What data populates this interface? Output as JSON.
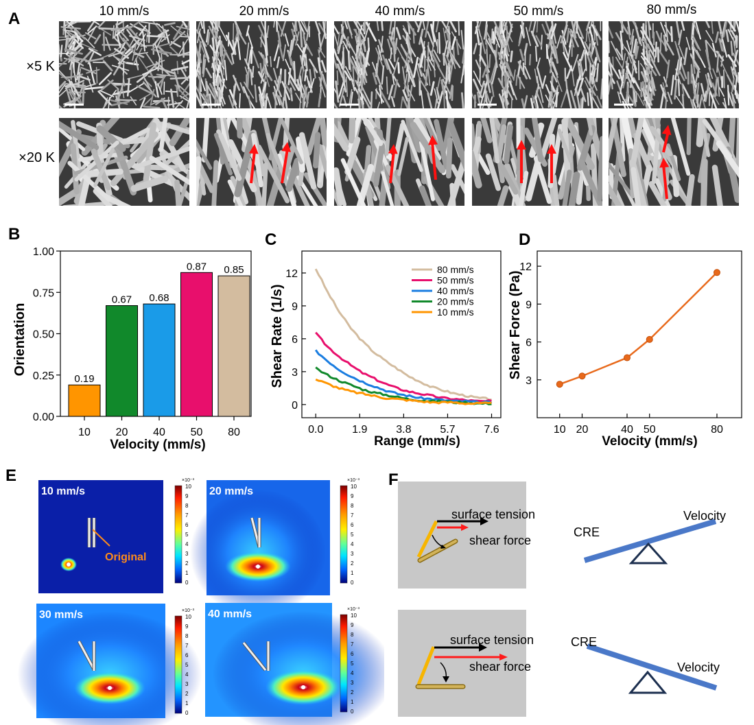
{
  "panels": {
    "A": "A",
    "B": "B",
    "C": "C",
    "D": "D",
    "E": "E",
    "F": "F"
  },
  "panel_a": {
    "velocities": [
      "10 mm/s",
      "20 mm/s",
      "40 mm/s",
      "50 mm/s",
      "80 mm/s"
    ],
    "magnifications": [
      "×5 K",
      "×20 K"
    ]
  },
  "chart_data": [
    {
      "id": "B",
      "type": "bar",
      "categories": [
        "10",
        "20",
        "40",
        "50",
        "80"
      ],
      "values": [
        0.19,
        0.67,
        0.68,
        0.87,
        0.85
      ],
      "value_labels": [
        "0.19",
        "0.67",
        "0.68",
        "0.87",
        "0.85"
      ],
      "colors": [
        "#ff9500",
        "#11892b",
        "#1a9be8",
        "#e80f6c",
        "#d3bc9f"
      ],
      "xlabel": "Velocity (mm/s)",
      "ylabel": "Orientation",
      "ylim": [
        0,
        1.0
      ],
      "yticks": [
        "0.00",
        "0.25",
        "0.50",
        "0.75",
        "1.00"
      ]
    },
    {
      "id": "C",
      "type": "line",
      "xlabel": "Range (mm/s)",
      "ylabel": "Shear Rate (1/s)",
      "xlim": [
        -0.6,
        8.0
      ],
      "ylim": [
        -1.2,
        14.0
      ],
      "xticks": [
        "0.0",
        "1.9",
        "3.8",
        "5.7",
        "7.6"
      ],
      "yticks": [
        "0",
        "3",
        "6",
        "9",
        "12"
      ],
      "legend_position": "top-right",
      "series": [
        {
          "name": "80 mm/s",
          "color": "#d3bc9f",
          "x": [
            0,
            0.5,
            1,
            1.5,
            2,
            2.5,
            3,
            3.5,
            4,
            4.5,
            5,
            5.5,
            6,
            6.5,
            7,
            7.6
          ],
          "y": [
            12.4,
            10.3,
            8.5,
            7.0,
            5.8,
            4.8,
            4.0,
            3.3,
            2.6,
            2.1,
            1.6,
            1.3,
            1.0,
            0.8,
            0.6,
            0.5
          ]
        },
        {
          "name": "50 mm/s",
          "color": "#e80f6c",
          "x": [
            0,
            0.5,
            1,
            1.5,
            2,
            2.5,
            3,
            3.5,
            4,
            4.5,
            5,
            5.5,
            6,
            6.5,
            7,
            7.6
          ],
          "y": [
            6.5,
            5.3,
            4.4,
            3.6,
            2.9,
            2.4,
            1.9,
            1.5,
            1.2,
            1.0,
            0.8,
            0.6,
            0.5,
            0.4,
            0.3,
            0.3
          ]
        },
        {
          "name": "40 mm/s",
          "color": "#1a7de0",
          "x": [
            0,
            0.5,
            1,
            1.5,
            2,
            2.5,
            3,
            3.5,
            4,
            4.5,
            5,
            5.5,
            6,
            6.5,
            7,
            7.6
          ],
          "y": [
            4.9,
            4.0,
            3.2,
            2.6,
            2.1,
            1.7,
            1.3,
            1.0,
            0.8,
            0.6,
            0.5,
            0.4,
            0.3,
            0.3,
            0.2,
            0.2
          ]
        },
        {
          "name": "20 mm/s",
          "color": "#11892b",
          "x": [
            0,
            0.5,
            1,
            1.5,
            2,
            2.5,
            3,
            3.5,
            4,
            4.5,
            5,
            5.5,
            6,
            6.5,
            7,
            7.6
          ],
          "y": [
            3.3,
            2.7,
            2.2,
            1.8,
            1.4,
            1.1,
            0.9,
            0.7,
            0.5,
            0.4,
            0.3,
            0.3,
            0.2,
            0.2,
            0.1,
            0.1
          ]
        },
        {
          "name": "10 mm/s",
          "color": "#ff9500",
          "x": [
            0,
            0.5,
            1,
            1.5,
            2,
            2.5,
            3,
            3.5,
            4,
            4.5,
            5,
            5.5,
            6,
            6.5,
            7,
            7.6
          ],
          "y": [
            2.3,
            1.9,
            1.5,
            1.2,
            1.0,
            0.8,
            0.6,
            0.5,
            0.4,
            0.3,
            0.2,
            0.2,
            0.2,
            0.1,
            0.1,
            0.1
          ]
        }
      ]
    },
    {
      "id": "D",
      "type": "line",
      "xlabel": "Velocity (mm/s)",
      "ylabel": "Shear Force (Pa)",
      "xlim": [
        0,
        91
      ],
      "ylim": [
        0,
        13.2
      ],
      "xticks": [
        "10",
        "20",
        "40",
        "50",
        "80"
      ],
      "yticks": [
        "3",
        "6",
        "9",
        "12"
      ],
      "color": "#e8691b",
      "series": [
        {
          "x": [
            10,
            20,
            40,
            50,
            80
          ],
          "y": [
            2.65,
            3.3,
            4.75,
            6.2,
            11.5
          ]
        }
      ]
    }
  ],
  "panel_e": {
    "sims": [
      "10 mm/s",
      "20 mm/s",
      "30 mm/s",
      "40 mm/s"
    ],
    "annotation": "Original",
    "colorbar_exp": "×10⁻³",
    "colorbar_ticks": [
      "10",
      "9",
      "8",
      "7",
      "6",
      "5",
      "4",
      "3",
      "2",
      "1",
      "0"
    ]
  },
  "panel_f": {
    "top": {
      "tension": "surface tension",
      "shear": "shear force",
      "left": "CRE",
      "right": "Velocity"
    },
    "bottom": {
      "tension": "surface tension",
      "shear": "shear force",
      "left": "CRE",
      "right": "Velocity"
    }
  }
}
